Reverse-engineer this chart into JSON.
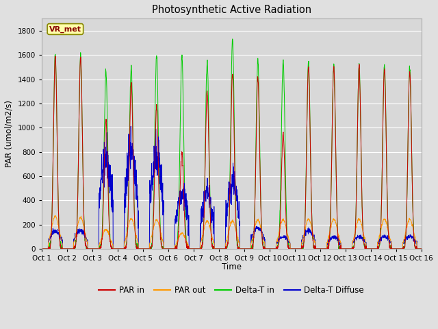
{
  "title": "Photosynthetic Active Radiation",
  "ylabel": "PAR (umol/m2/s)",
  "xlabel": "Time",
  "xlim": [
    0,
    15
  ],
  "ylim": [
    0,
    1900
  ],
  "yticks": [
    0,
    200,
    400,
    600,
    800,
    1000,
    1200,
    1400,
    1600,
    1800
  ],
  "xtick_labels": [
    "Oct 1",
    "Oct 2",
    "Oct 3",
    "Oct 4",
    "Oct 5",
    "Oct 6",
    "Oct 7",
    "Oct 8",
    "Oct 9",
    "Oct 10",
    "Oct 11",
    "Oct 12",
    "Oct 13",
    "Oct 14",
    "Oct 15",
    "Oct 16"
  ],
  "xtick_positions": [
    0,
    1,
    2,
    3,
    4,
    5,
    6,
    7,
    8,
    9,
    10,
    11,
    12,
    13,
    14,
    15
  ],
  "background_color": "#e0e0e0",
  "plot_bg_color": "#d8d8d8",
  "colors": {
    "par_in": "#cc0000",
    "par_out": "#ff9900",
    "delta_t_in": "#00cc00",
    "delta_t_diffuse": "#0000cc"
  },
  "label_box": {
    "text": "VR_met",
    "bg": "#ffffaa",
    "border": "#888800",
    "text_color": "#880000"
  },
  "legend": [
    "PAR in",
    "PAR out",
    "Delta-T in",
    "Delta-T Diffuse"
  ],
  "day_peaks_green": [
    1610,
    1590,
    1470,
    1500,
    1600,
    1590,
    1540,
    1720,
    1560,
    1560,
    1550,
    1520,
    1510,
    1510,
    1490
  ],
  "day_peaks_red": [
    1590,
    1570,
    1060,
    1360,
    1170,
    800,
    1300,
    1440,
    1420,
    950,
    1500,
    1500,
    1500,
    1490,
    1460
  ],
  "day_peaks_orange": [
    270,
    260,
    160,
    250,
    240,
    130,
    230,
    230,
    240,
    240,
    245,
    245,
    245,
    245,
    245
  ],
  "day_peaks_blue": [
    145,
    150,
    790,
    790,
    780,
    460,
    460,
    560,
    170,
    100,
    150,
    100,
    100,
    100,
    100
  ],
  "n_per_day": 144
}
